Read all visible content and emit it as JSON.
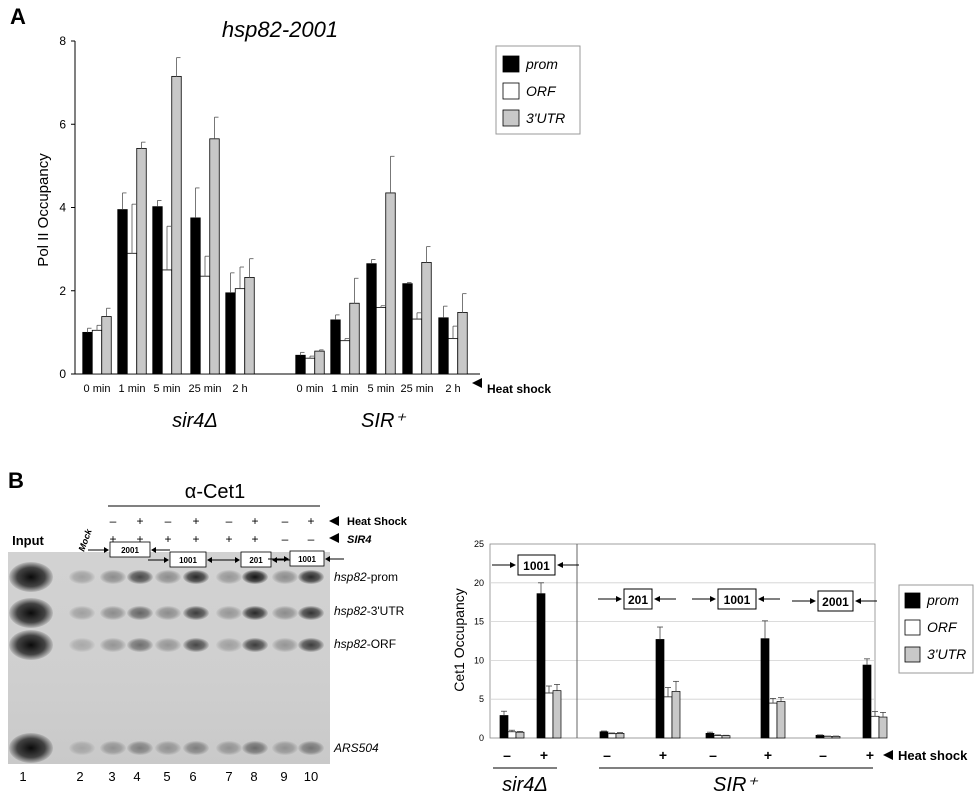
{
  "panelA": {
    "letter": "A",
    "title": "hsp82-2001",
    "ylabel": "Pol II Occupancy",
    "heat_label": "Heat shock",
    "group_labels": [
      "sir4Δ",
      "SIR⁺"
    ]
  },
  "panelB": {
    "letter": "B",
    "antibody": "α-Cet1",
    "row_labels": [
      "Heat Shock",
      "SIR4"
    ],
    "input_label": "Input",
    "mock_label": "Mock",
    "heat_signs": [
      "–",
      "+",
      "–",
      "+",
      "–",
      "+",
      "–",
      "+"
    ],
    "sir4_signs": [
      "+",
      "+",
      "+",
      "+",
      "+",
      "+",
      "–",
      "–"
    ],
    "gel_boxes": [
      "2001",
      "1001",
      "201",
      "1001"
    ],
    "band_labels": [
      "hsp82-prom",
      "hsp82-3'UTR",
      "hsp82-ORF",
      "ARS504"
    ],
    "lane_numbers": [
      "1",
      "2",
      "3",
      "4",
      "5",
      "6",
      "7",
      "8",
      "9",
      "10"
    ],
    "ylabel": "Cet1 Occupancy",
    "heat_label": "Heat shock",
    "signs": [
      "–",
      "+",
      "–",
      "+",
      "–",
      "+",
      "–",
      "+"
    ],
    "group_labels": [
      "sir4Δ",
      "SIR⁺"
    ],
    "chart_boxes": [
      "1001",
      "201",
      "1001",
      "2001"
    ]
  },
  "chart_data": [
    {
      "type": "bar",
      "title": "hsp82-2001",
      "xlabel": "",
      "ylabel": "Pol II Occupancy",
      "ylim": [
        0,
        8
      ],
      "yticks": [
        0,
        2,
        4,
        6,
        8
      ],
      "grid": false,
      "legend": "top-right",
      "legend_entries": [
        "prom",
        "ORF",
        "3'UTR"
      ],
      "colors": {
        "prom": "#000000",
        "ORF": "#ffffff",
        "3'UTR": "#c8c8c8"
      },
      "categories": [
        "0 min",
        "1 min",
        "5 min",
        "25 min",
        "2 h",
        "0 min",
        "1 min",
        "5 min",
        "25 min",
        "2 h"
      ],
      "groups": [
        "sir4Δ",
        "sir4Δ",
        "sir4Δ",
        "sir4Δ",
        "sir4Δ",
        "SIR⁺",
        "SIR⁺",
        "SIR⁺",
        "SIR⁺",
        "SIR⁺"
      ],
      "series": [
        {
          "name": "prom",
          "values": [
            1.0,
            3.95,
            4.02,
            3.75,
            1.95,
            0.45,
            1.3,
            2.65,
            2.17,
            1.35
          ],
          "errors": [
            0.1,
            0.4,
            0.15,
            0.72,
            0.48,
            0.07,
            0.12,
            0.1,
            0.03,
            0.28
          ]
        },
        {
          "name": "ORF",
          "values": [
            1.05,
            2.9,
            2.5,
            2.35,
            2.05,
            0.38,
            0.8,
            1.6,
            1.32,
            0.85
          ],
          "errors": [
            0.12,
            1.18,
            1.05,
            0.48,
            0.52,
            0.05,
            0.05,
            0.04,
            0.15,
            0.3
          ]
        },
        {
          "name": "3'UTR",
          "values": [
            1.38,
            5.42,
            7.15,
            5.65,
            2.32,
            0.55,
            1.7,
            4.35,
            2.68,
            1.48
          ],
          "errors": [
            0.2,
            0.15,
            0.45,
            0.52,
            0.45,
            0.03,
            0.6,
            0.88,
            0.38,
            0.45
          ]
        }
      ]
    },
    {
      "type": "bar",
      "title": "",
      "xlabel": "",
      "ylabel": "Cet1 Occupancy",
      "ylim": [
        0,
        25
      ],
      "yticks": [
        0,
        5,
        10,
        15,
        20,
        25
      ],
      "grid": true,
      "legend": "right",
      "legend_entries": [
        "prom",
        "ORF",
        "3'UTR"
      ],
      "colors": {
        "prom": "#000000",
        "ORF": "#ffffff",
        "3'UTR": "#c8c8c8"
      },
      "categories": [
        "–",
        "+",
        "–",
        "+",
        "–",
        "+",
        "–",
        "+"
      ],
      "groups": [
        "sir4Δ 1001",
        "sir4Δ 1001",
        "SIR⁺ 201",
        "SIR⁺ 201",
        "SIR⁺ 1001",
        "SIR⁺ 1001",
        "SIR⁺ 2001",
        "SIR⁺ 2001"
      ],
      "series": [
        {
          "name": "prom",
          "values": [
            2.9,
            18.6,
            0.8,
            12.7,
            0.6,
            12.8,
            0.35,
            9.4
          ],
          "errors": [
            0.55,
            1.4,
            0.1,
            1.6,
            0.15,
            2.3,
            0.05,
            0.8
          ]
        },
        {
          "name": "ORF",
          "values": [
            0.8,
            5.8,
            0.55,
            5.3,
            0.3,
            4.5,
            0.2,
            2.8
          ],
          "errors": [
            0.2,
            0.9,
            0.1,
            1.2,
            0.1,
            0.6,
            0.05,
            0.6
          ]
        },
        {
          "name": "3'UTR",
          "values": [
            0.75,
            6.1,
            0.6,
            6.0,
            0.3,
            4.7,
            0.2,
            2.7
          ],
          "errors": [
            0.1,
            0.8,
            0.1,
            1.3,
            0.05,
            0.5,
            0.05,
            0.6
          ]
        }
      ]
    }
  ]
}
